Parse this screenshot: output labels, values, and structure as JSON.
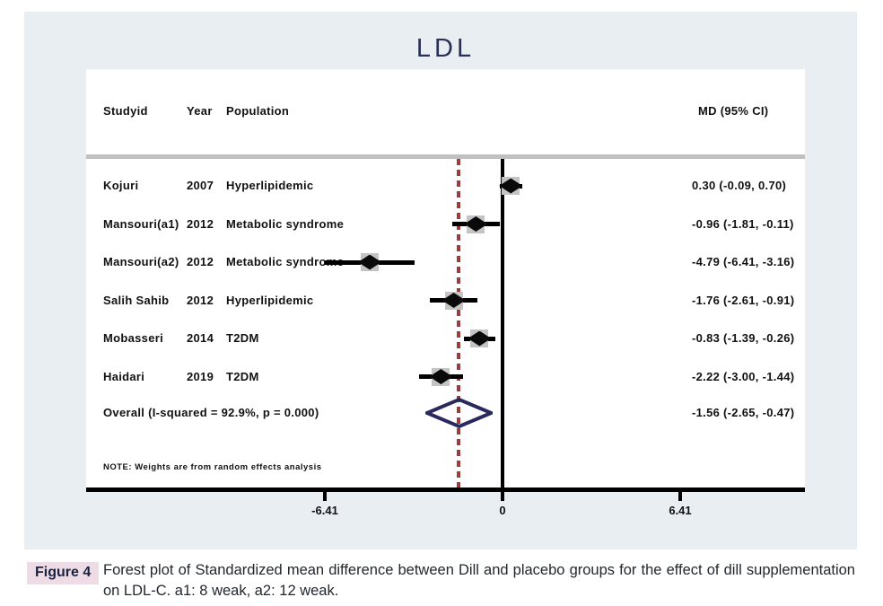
{
  "title": "LDL",
  "columns": {
    "study": "Studyid",
    "year": "Year",
    "population": "Population",
    "md": "MD (95% CI)"
  },
  "note": "NOTE: Weights are from random effects analysis",
  "axis": {
    "ticks": [
      -6.41,
      0,
      6.41
    ],
    "tick_labels": [
      "-6.41",
      "0",
      "6.41"
    ]
  },
  "chart_data": {
    "type": "forest",
    "title": "LDL",
    "effect_label": "MD (95% CI)",
    "null_line_x": 0,
    "overall_dashed_line_x": -1.56,
    "studies": [
      {
        "study": "Kojuri",
        "year": "2007",
        "population": "Hyperlipidemic",
        "md": 0.3,
        "lo": -0.09,
        "hi": 0.7,
        "label": "0.30 (-0.09, 0.70)"
      },
      {
        "study": "Mansouri(a1)",
        "year": "2012",
        "population": "Metabolic syndrome",
        "md": -0.96,
        "lo": -1.81,
        "hi": -0.11,
        "label": "-0.96 (-1.81, -0.11)"
      },
      {
        "study": "Mansouri(a2)",
        "year": "2012",
        "population": "Metabolic syndrome",
        "md": -4.79,
        "lo": -6.41,
        "hi": -3.16,
        "label": "-4.79 (-6.41, -3.16)"
      },
      {
        "study": "Salih Sahib",
        "year": "2012",
        "population": "Hyperlipidemic",
        "md": -1.76,
        "lo": -2.61,
        "hi": -0.91,
        "label": "-1.76 (-2.61, -0.91)"
      },
      {
        "study": "Mobasseri",
        "year": "2014",
        "population": "T2DM",
        "md": -0.83,
        "lo": -1.39,
        "hi": -0.26,
        "label": "-0.83 (-1.39, -0.26)"
      },
      {
        "study": "Haidari",
        "year": "2019",
        "population": "T2DM",
        "md": -2.22,
        "lo": -3.0,
        "hi": -1.44,
        "label": "-2.22 (-3.00, -1.44)"
      }
    ],
    "overall": {
      "text": "Overall  (I-squared = 92.9%, p = 0.000)",
      "md": -1.56,
      "lo": -2.65,
      "hi": -0.47,
      "label": "-1.56 (-2.65, -0.47)"
    }
  },
  "caption": {
    "badge": "Figure 4",
    "text": "Forest plot of Standardized mean difference between Dill and placebo groups for the effect of dill supplementation on LDL-C. a1: 8 weak, a2: 12 weak."
  },
  "colors": {
    "panel_background": "#e8eef1",
    "dashed_line": "#9e3a3a",
    "overall_diamond": "#29295e",
    "weight_box": "#c4c4c4",
    "separator_gray": "#c0c0c0",
    "title_navy": "#2b3156",
    "caption_badge_bg": "#eddbe6",
    "caption_badge_text": "#1b2140"
  }
}
